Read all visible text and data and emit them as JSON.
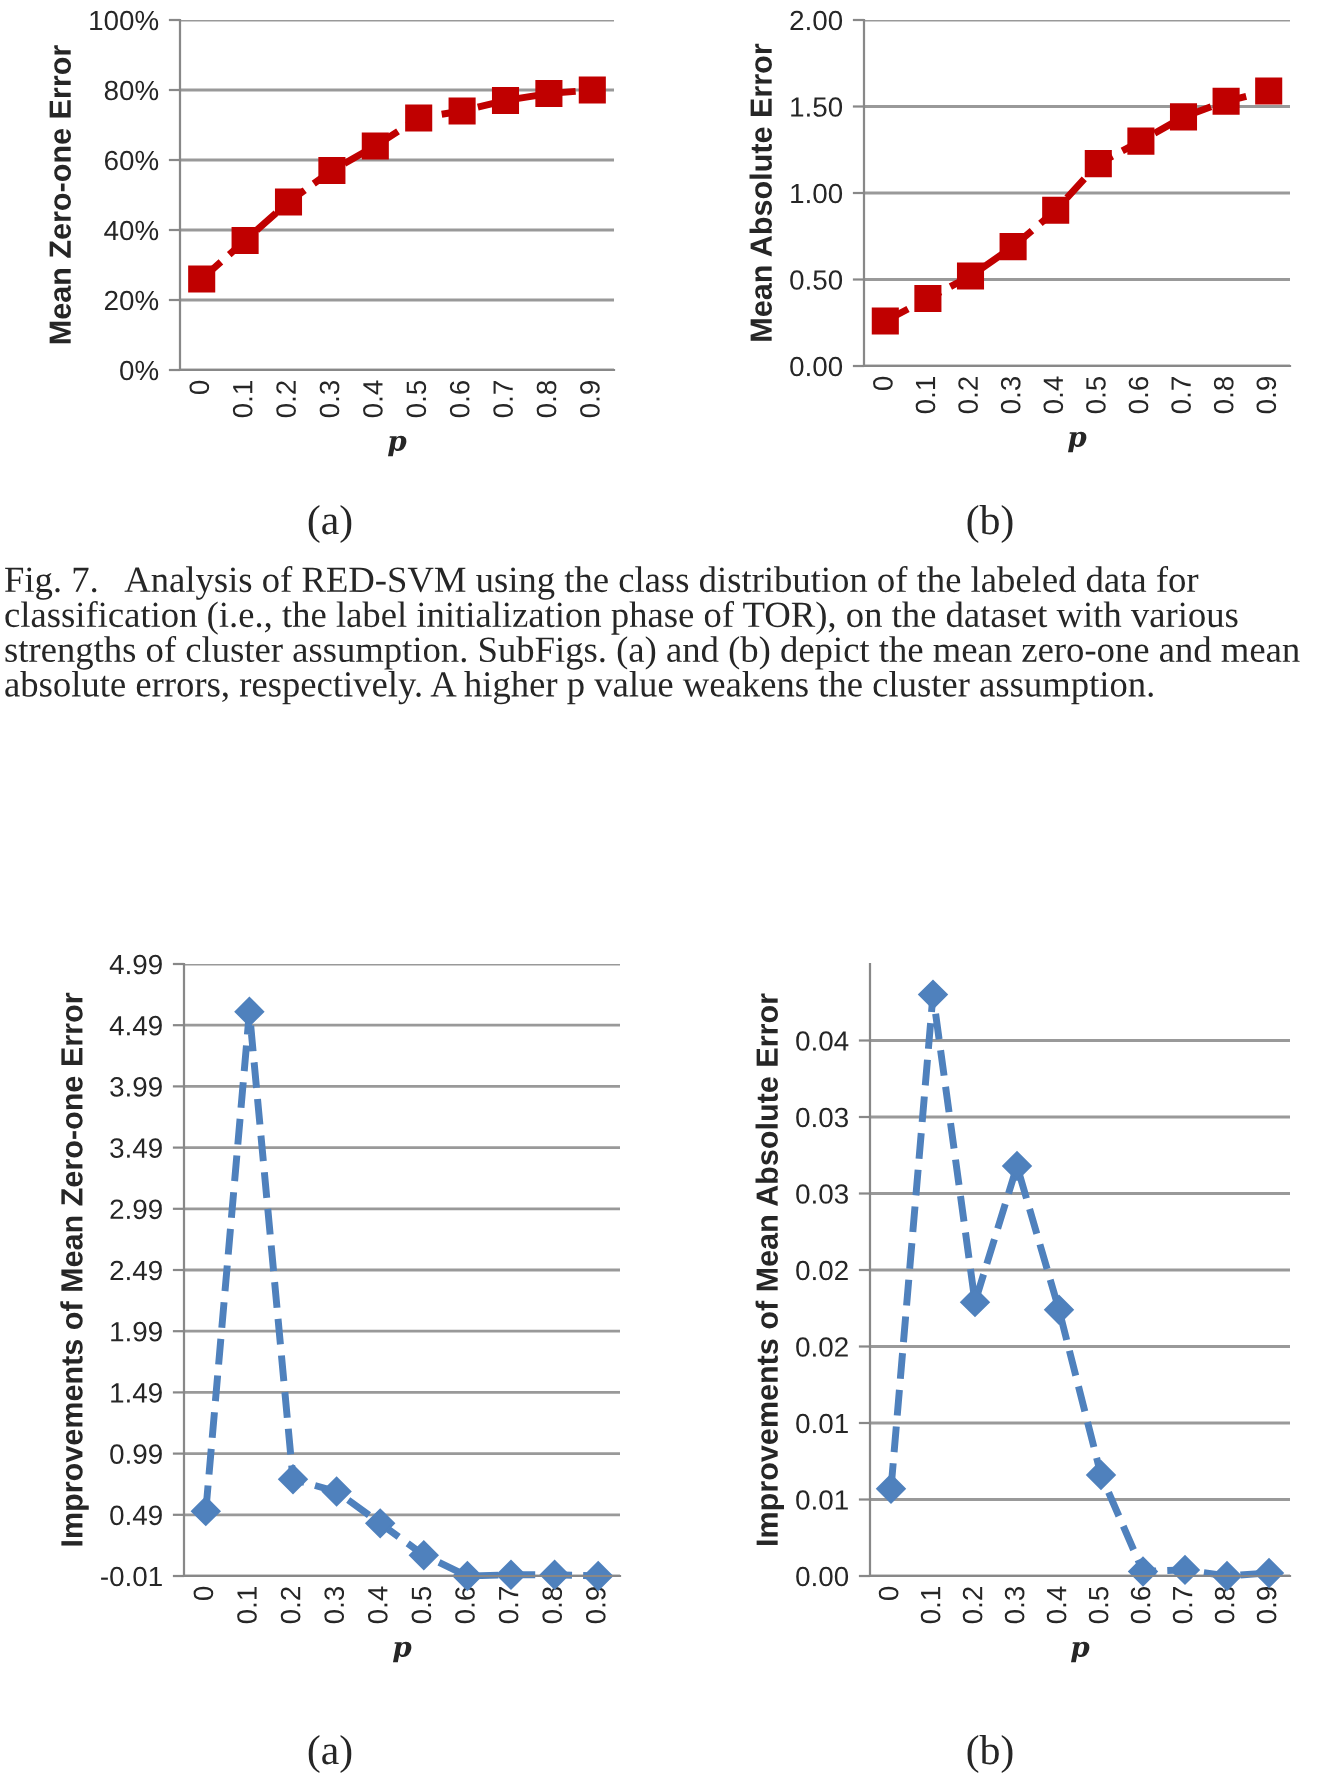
{
  "chart_data": [
    {
      "type": "line",
      "categories": [
        "0",
        "0.1",
        "0.2",
        "0.3",
        "0.4",
        "0.5",
        "0.6",
        "0.7",
        "0.8",
        "0.9"
      ],
      "xlabel": "p",
      "ylabel": "Mean Zero-one Error",
      "series": [
        {
          "color": "#c00000",
          "values": [
            26,
            37,
            48,
            57,
            64,
            72,
            74,
            77,
            79,
            80
          ]
        }
      ],
      "ylim": [
        0,
        100
      ],
      "yticks": [
        {
          "value": 0,
          "label": "0%"
        },
        {
          "value": 20,
          "label": "20%"
        },
        {
          "value": 40,
          "label": "40%"
        },
        {
          "value": 60,
          "label": "60%"
        },
        {
          "value": 80,
          "label": "80%"
        },
        {
          "value": 100,
          "label": "100%"
        }
      ],
      "grid": "y",
      "marker": "square",
      "line_style": "dashed",
      "annotations": [
        "(a)",
        "Fig. 7.   Analysis of RED-SVM using the class distribution of the labeled data for classification (i.e., the label initialization phase of TOR), on the dataset with various strengths of cluster assumption. SubFigs. (a) and (b) depict the mean zero-one and mean absolute errors, respectively. A higher p value weakens the cluster assumption."
      ]
    },
    {
      "type": "line",
      "categories": [
        "0",
        "0.1",
        "0.2",
        "0.3",
        "0.4",
        "0.5",
        "0.6",
        "0.7",
        "0.8",
        "0.9"
      ],
      "xlabel": "p",
      "ylabel": "Mean Absolute Error",
      "series": [
        {
          "color": "#c00000",
          "values": [
            0.26,
            0.39,
            0.52,
            0.69,
            0.9,
            1.17,
            1.3,
            1.44,
            1.53,
            1.59
          ]
        }
      ],
      "ylim": [
        0,
        2
      ],
      "yticks": [
        {
          "value": 0,
          "label": "0.00"
        },
        {
          "value": 0.5,
          "label": "0.50"
        },
        {
          "value": 1,
          "label": "1.00"
        },
        {
          "value": 1.5,
          "label": "1.50"
        },
        {
          "value": 2,
          "label": "2.00"
        }
      ],
      "grid": "y",
      "marker": "square",
      "line_style": "dashed",
      "annotations": [
        "(b)"
      ]
    },
    {
      "type": "line",
      "categories": [
        "0",
        "0.1",
        "0.2",
        "0.3",
        "0.4",
        "0.5",
        "0.6",
        "0.7",
        "0.8",
        "0.9"
      ],
      "xlabel": "p",
      "ylabel": "Improvements of Mean Zero-one Error",
      "series": [
        {
          "color": "#4f81bd",
          "values": [
            0.52,
            4.6,
            0.78,
            0.68,
            0.42,
            0.16,
            -0.01,
            0.0,
            0.0,
            -0.01
          ]
        }
      ],
      "ylim": [
        -0.01,
        4.99
      ],
      "yticks": [
        -0.01,
        0.49,
        0.99,
        1.49,
        1.99,
        2.49,
        2.99,
        3.49,
        3.99,
        4.49,
        4.99
      ],
      "grid": "y",
      "marker": "diamond",
      "line_style": "dashed",
      "annotations": [
        "(a)"
      ]
    },
    {
      "type": "line",
      "categories": [
        "0",
        "0.1",
        "0.2",
        "0.3",
        "0.4",
        "0.5",
        "0.6",
        "0.7",
        "0.8",
        "0.9"
      ],
      "xlabel": "p",
      "ylabel": "Improvements of Mean Absolute Error",
      "series": [
        {
          "color": "#4f81bd",
          "values": [
            0.0057,
            0.038,
            0.0179,
            0.0268,
            0.0174,
            0.0066,
            0.0003,
            0.0004,
            0.0,
            0.0002
          ]
        }
      ],
      "ylim": [
        0,
        0.04
      ],
      "yticks": [
        {
          "value": 0,
          "label": "0.00"
        },
        {
          "value": 0.005,
          "label": "0.01"
        },
        {
          "value": 0.01,
          "label": "0.01"
        },
        {
          "value": 0.015,
          "label": "0.02"
        },
        {
          "value": 0.02,
          "label": "0.02"
        },
        {
          "value": 0.025,
          "label": "0.03"
        },
        {
          "value": 0.03,
          "label": "0.03"
        },
        {
          "value": 0.035,
          "label": "0.04"
        }
      ],
      "grid": "y",
      "marker": "diamond",
      "line_style": "dashed",
      "annotations": [
        "(b)"
      ]
    }
  ]
}
